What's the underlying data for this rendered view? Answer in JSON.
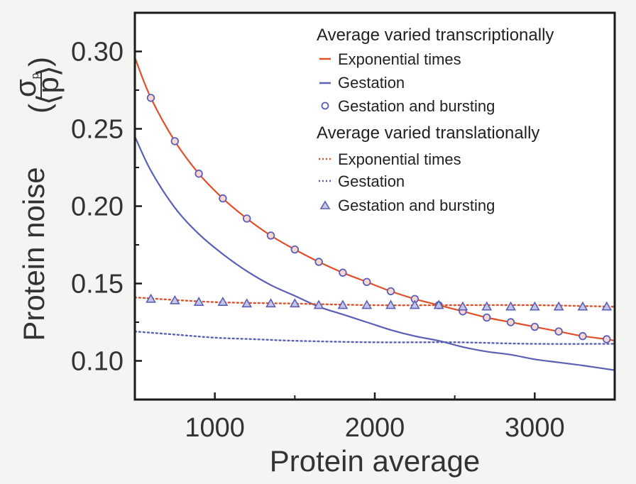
{
  "chart_data": {
    "type": "line",
    "xlabel": "Protein average",
    "ylabel": "Protein noise",
    "ylabel_fraction": {
      "numerator": "σ",
      "numerator_sub": "p",
      "denominator": "⟨p⟩"
    },
    "xlim": [
      500,
      3500
    ],
    "ylim": [
      0.075,
      0.325
    ],
    "xticks": [
      1000,
      2000,
      3000
    ],
    "yticks": [
      0.1,
      0.15,
      0.2,
      0.25,
      0.3
    ],
    "ytick_labels": [
      "0.10",
      "0.15",
      "0.20",
      "0.25",
      "0.30"
    ],
    "legend": {
      "group1_title": "Average varied transcriptionally",
      "group2_title": "Average varied translationally",
      "entries": [
        {
          "label": "Exponential times",
          "style": "solid-line",
          "color": "#e0502a"
        },
        {
          "label": "Gestation",
          "style": "solid-line",
          "color": "#5b5fb5"
        },
        {
          "label": "Gestation and bursting",
          "style": "circle-marker",
          "color": "#5b5fb5"
        },
        {
          "label": "Exponential times",
          "style": "dotted-line",
          "color": "#e0502a"
        },
        {
          "label": "Gestation",
          "style": "dotted-line",
          "color": "#5b5fb5"
        },
        {
          "label": "Gestation and bursting",
          "style": "triangle-marker",
          "color": "#5b5fb5"
        }
      ]
    },
    "series": [
      {
        "name": "Exponential times (transcriptional)",
        "kind": "curve",
        "color": "#e0502a",
        "dash": "solid",
        "x": [
          500,
          600,
          750,
          900,
          1050,
          1200,
          1350,
          1500,
          1650,
          1800,
          1950,
          2100,
          2250,
          2400,
          2550,
          2700,
          2850,
          3000,
          3150,
          3300,
          3450,
          3500
        ],
        "y": [
          0.296,
          0.27,
          0.242,
          0.221,
          0.205,
          0.192,
          0.181,
          0.172,
          0.164,
          0.157,
          0.151,
          0.145,
          0.14,
          0.136,
          0.132,
          0.128,
          0.125,
          0.122,
          0.119,
          0.116,
          0.114,
          0.113
        ]
      },
      {
        "name": "Gestation (transcriptional)",
        "kind": "curve",
        "color": "#5b5fb5",
        "dash": "solid",
        "x": [
          500,
          600,
          750,
          900,
          1050,
          1200,
          1350,
          1500,
          1650,
          1800,
          1950,
          2100,
          2250,
          2400,
          2550,
          2700,
          2850,
          3000,
          3150,
          3300,
          3500
        ],
        "y": [
          0.245,
          0.223,
          0.199,
          0.182,
          0.169,
          0.158,
          0.149,
          0.142,
          0.135,
          0.13,
          0.125,
          0.12,
          0.116,
          0.113,
          0.109,
          0.106,
          0.104,
          0.101,
          0.099,
          0.097,
          0.094
        ]
      },
      {
        "name": "Gestation and bursting (transcriptional)",
        "kind": "circles",
        "color": "#5b5fb5",
        "x": [
          600,
          750,
          900,
          1050,
          1200,
          1350,
          1500,
          1650,
          1800,
          1950,
          2100,
          2250,
          2400,
          2550,
          2700,
          2850,
          3000,
          3150,
          3300,
          3450
        ],
        "y": [
          0.27,
          0.242,
          0.221,
          0.205,
          0.192,
          0.181,
          0.172,
          0.164,
          0.157,
          0.151,
          0.145,
          0.14,
          0.136,
          0.132,
          0.128,
          0.125,
          0.122,
          0.119,
          0.116,
          0.114
        ]
      },
      {
        "name": "Exponential times (translational)",
        "kind": "curve",
        "color": "#e0502a",
        "dash": "dotted",
        "x": [
          500,
          1000,
          1500,
          2000,
          2500,
          3000,
          3500
        ],
        "y": [
          0.141,
          0.138,
          0.137,
          0.136,
          0.136,
          0.136,
          0.135
        ]
      },
      {
        "name": "Gestation (translational)",
        "kind": "curve",
        "color": "#5b5fb5",
        "dash": "dotted",
        "x": [
          500,
          750,
          1000,
          1250,
          1500,
          2000,
          2500,
          3000,
          3500
        ],
        "y": [
          0.119,
          0.117,
          0.115,
          0.114,
          0.113,
          0.112,
          0.112,
          0.111,
          0.111
        ]
      },
      {
        "name": "Gestation and bursting (translational)",
        "kind": "triangles",
        "color": "#5b5fb5",
        "x": [
          600,
          750,
          900,
          1050,
          1200,
          1350,
          1500,
          1650,
          1800,
          1950,
          2100,
          2250,
          2400,
          2550,
          2700,
          2850,
          3000,
          3150,
          3300,
          3450
        ],
        "y": [
          0.14,
          0.139,
          0.138,
          0.138,
          0.137,
          0.137,
          0.137,
          0.136,
          0.136,
          0.136,
          0.136,
          0.136,
          0.136,
          0.135,
          0.135,
          0.135,
          0.135,
          0.135,
          0.135,
          0.135
        ]
      }
    ]
  }
}
